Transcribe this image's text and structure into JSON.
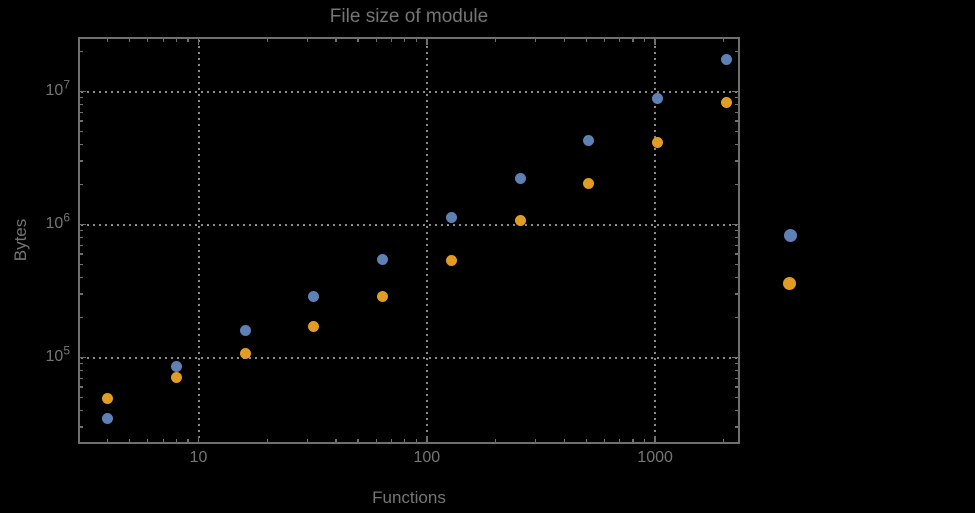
{
  "colors": {
    "background": "#000000",
    "frame": "#6f6f6f",
    "gridline": "#8a8a8a",
    "text": "#757575"
  },
  "chart_data": {
    "type": "scatter",
    "title": "File size of module",
    "xlabel": "Functions",
    "ylabel": "Bytes",
    "x_scale": "log",
    "y_scale": "log",
    "grid": "dotted",
    "xlim": [
      3,
      2300
    ],
    "ylim": [
      22000,
      26000000
    ],
    "x_ticks": [
      10,
      100,
      1000
    ],
    "y_ticks": [
      {
        "base": "10",
        "exp": "5"
      },
      {
        "base": "10",
        "exp": "6"
      },
      {
        "base": "10",
        "exp": "7"
      }
    ],
    "series": [
      {
        "color": "#5E81B5",
        "x": [
          4,
          8,
          16,
          32,
          64,
          128,
          256,
          512,
          1024,
          2048
        ],
        "y": [
          35000,
          86000,
          160000,
          290000,
          550000,
          1120000,
          2200000,
          4300000,
          8900000,
          17500000
        ]
      },
      {
        "color": "#E19C24",
        "x": [
          4,
          8,
          16,
          32,
          64,
          128,
          256,
          512,
          1024,
          2048
        ],
        "y": [
          49000,
          71000,
          107000,
          170000,
          290000,
          540000,
          1080000,
          2050000,
          4100000,
          8300000
        ]
      }
    ],
    "legend_markers": [
      {
        "color": "#5E81B5"
      },
      {
        "color": "#E19C24"
      }
    ]
  }
}
